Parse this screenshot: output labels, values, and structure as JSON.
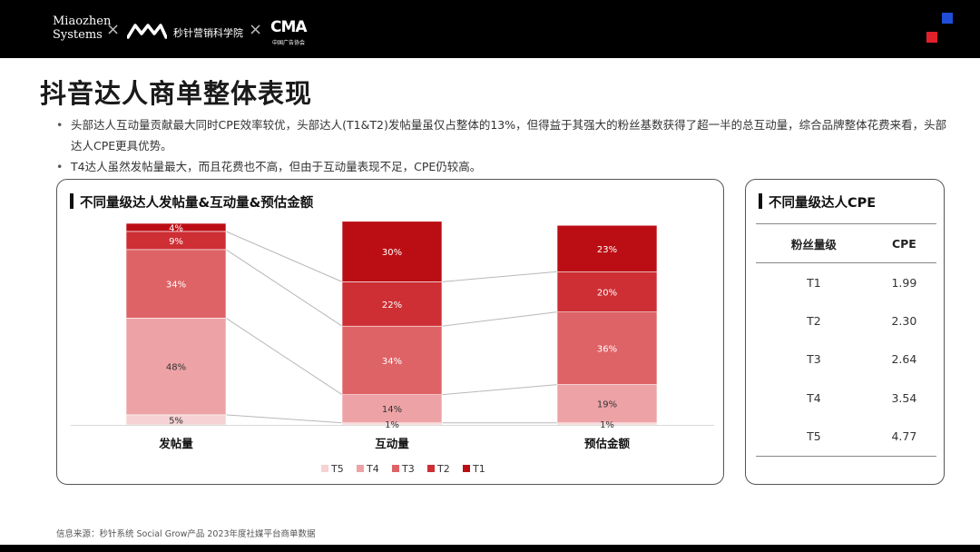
{
  "header": {
    "brand_line1": "Miaozhen",
    "brand_line2": "Systems",
    "separator": "×",
    "mk_label": "秒针营销科学院",
    "cma_label": "CMA",
    "cma_sub": "中国广告协会",
    "accent_blue": "#1f4ed8",
    "accent_red": "#e0202a"
  },
  "page_title": "抖音达人商单整体表现",
  "bullets": [
    "头部达人互动量贡献最大同时CPE效率较优，头部达人(T1&T2)发帖量虽仅占整体的13%，但得益于其强大的粉丝基数获得了超一半的总互动量，综合品牌整体花费来看，头部达人CPE更具优势。",
    "T4达人虽然发帖量最大，而且花费也不高，但由于互动量表现不足，CPE仍较高。"
  ],
  "left_panel": {
    "title": "不同量级达人发帖量&互动量&预估金额"
  },
  "right_panel": {
    "title": "不同量级达人CPE",
    "headers": [
      "粉丝量级",
      "CPE"
    ],
    "rows": [
      [
        "T1",
        "1.99"
      ],
      [
        "T2",
        "2.30"
      ],
      [
        "T3",
        "2.64"
      ],
      [
        "T4",
        "3.54"
      ],
      [
        "T5",
        "4.77"
      ]
    ]
  },
  "chart_data": {
    "type": "bar",
    "stacked": true,
    "percent": true,
    "categories": [
      "发帖量",
      "互动量",
      "预估金额"
    ],
    "ylim": [
      0,
      100
    ],
    "legend_position": "bottom",
    "series": [
      {
        "name": "T5",
        "color": "#f5d2d3",
        "values": [
          5,
          1,
          1
        ],
        "labels": [
          "5%",
          "1%",
          "1%"
        ]
      },
      {
        "name": "T4",
        "color": "#eda3a6",
        "values": [
          48,
          14,
          19
        ],
        "labels": [
          "48%",
          "14%",
          "19%"
        ]
      },
      {
        "name": "T3",
        "color": "#de6366",
        "values": [
          34,
          34,
          36
        ],
        "labels": [
          "34%",
          "34%",
          "36%"
        ]
      },
      {
        "name": "T2",
        "color": "#cd2f34",
        "values": [
          9,
          22,
          20
        ],
        "labels": [
          "9%",
          "22%",
          "20%"
        ]
      },
      {
        "name": "T1",
        "color": "#bb0e14",
        "values": [
          4,
          30,
          23
        ],
        "labels": [
          "4%",
          "30%",
          "23%"
        ]
      }
    ]
  },
  "footer": "信息来源：秒针系统  Social Grow产品  2023年度社媒平台商单数据"
}
